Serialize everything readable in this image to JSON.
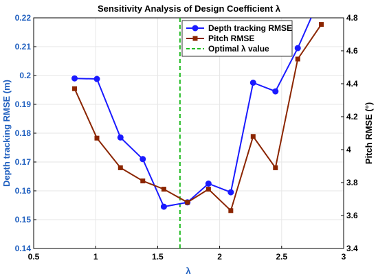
{
  "chart_data": {
    "type": "line",
    "title": "Sensitivity Analysis of Design Coefficient λ",
    "xlabel": "λ",
    "ylabel_left": "Depth tracking RMSE (m)",
    "ylabel_right": "Pitch RMSE (°)",
    "xlim": [
      0.5,
      3
    ],
    "ylim_left": [
      0.14,
      0.22
    ],
    "ylim_right": [
      3.4,
      4.8
    ],
    "x_ticks": [
      "0.5",
      "1",
      "1.5",
      "2",
      "2.5",
      "3"
    ],
    "y_left_ticks": [
      "0.14",
      "0.15",
      "0.16",
      "0.17",
      "0.18",
      "0.19",
      "0.2",
      "0.21",
      "0.22"
    ],
    "y_right_ticks": [
      "3.4",
      "3.6",
      "3.8",
      "4",
      "4.2",
      "4.4",
      "4.6",
      "4.8"
    ],
    "grid": true,
    "legend_position": "top-right",
    "colors": {
      "depth": "#1a1aff",
      "pitch": "#8b2500",
      "optimal": "#22bb22",
      "left_axis": "#1f5fbf"
    },
    "series": [
      {
        "name": "Depth tracking RMSE",
        "axis": "left",
        "marker": "circle",
        "x": [
          0.83,
          1.01,
          1.2,
          1.38,
          1.55,
          1.74,
          1.91,
          2.09,
          2.27,
          2.45,
          2.63,
          2.82
        ],
        "values": [
          0.199,
          0.1988,
          0.1785,
          0.171,
          0.1545,
          0.156,
          0.1625,
          0.1595,
          0.1975,
          0.1945,
          0.2095,
          0.228
        ]
      },
      {
        "name": "Pitch RMSE",
        "axis": "right",
        "marker": "square",
        "x": [
          0.83,
          1.01,
          1.2,
          1.38,
          1.55,
          1.74,
          1.91,
          2.09,
          2.27,
          2.45,
          2.63,
          2.82
        ],
        "values": [
          4.37,
          4.07,
          3.89,
          3.81,
          3.76,
          3.68,
          3.76,
          3.63,
          4.08,
          3.89,
          4.55,
          4.76
        ]
      }
    ],
    "optimal": {
      "name": "Optimal λ value",
      "x": 1.68
    }
  }
}
